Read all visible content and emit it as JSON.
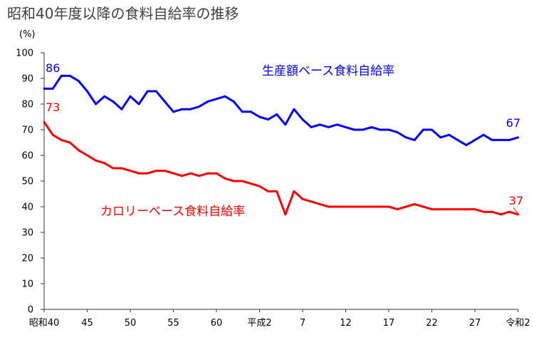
{
  "title": "昭和40年度以降の食料自給率の推移",
  "chart_data": {
    "type": "line",
    "ylabel": "(%)",
    "ylim": [
      0,
      100
    ],
    "yticks": [
      0,
      10,
      20,
      30,
      40,
      50,
      60,
      70,
      80,
      90,
      100
    ],
    "grid": false,
    "categories": [
      "昭和40",
      "",
      "",
      "",
      "",
      "45",
      "",
      "",
      "",
      "",
      "50",
      "",
      "",
      "",
      "",
      "55",
      "",
      "",
      "",
      "",
      "60",
      "",
      "",
      "",
      "",
      "平成2",
      "",
      "",
      "",
      "",
      "7",
      "",
      "",
      "",
      "",
      "12",
      "",
      "",
      "",
      "",
      "17",
      "",
      "",
      "",
      "",
      "22",
      "",
      "",
      "",
      "",
      "27",
      "",
      "",
      "",
      "",
      "令和2"
    ],
    "series": [
      {
        "name": "生産額ベース食料自給率",
        "color": "#0000ff",
        "start_label": "86",
        "end_label": "67",
        "values": [
          86,
          86,
          91,
          91,
          89,
          85,
          80,
          83,
          81,
          78,
          83,
          80,
          85,
          85,
          81,
          77,
          78,
          78,
          79,
          81,
          82,
          83,
          81,
          77,
          77,
          75,
          74,
          76,
          72,
          78,
          74,
          71,
          72,
          71,
          72,
          71,
          70,
          70,
          71,
          70,
          70,
          69,
          67,
          66,
          70,
          70,
          67,
          68,
          66,
          64,
          66,
          68,
          66,
          66,
          66,
          67
        ]
      },
      {
        "name": "カロリーベース食料自給率",
        "color": "#ff0000",
        "start_label": "73",
        "end_label": "37",
        "values": [
          73,
          68,
          66,
          65,
          62,
          60,
          58,
          57,
          55,
          55,
          54,
          53,
          53,
          54,
          54,
          53,
          52,
          53,
          52,
          53,
          53,
          51,
          50,
          50,
          49,
          48,
          46,
          46,
          37,
          46,
          43,
          42,
          41,
          40,
          40,
          40,
          40,
          40,
          40,
          40,
          40,
          39,
          40,
          41,
          40,
          39,
          39,
          39,
          39,
          39,
          39,
          38,
          38,
          37,
          38,
          37
        ]
      }
    ]
  }
}
